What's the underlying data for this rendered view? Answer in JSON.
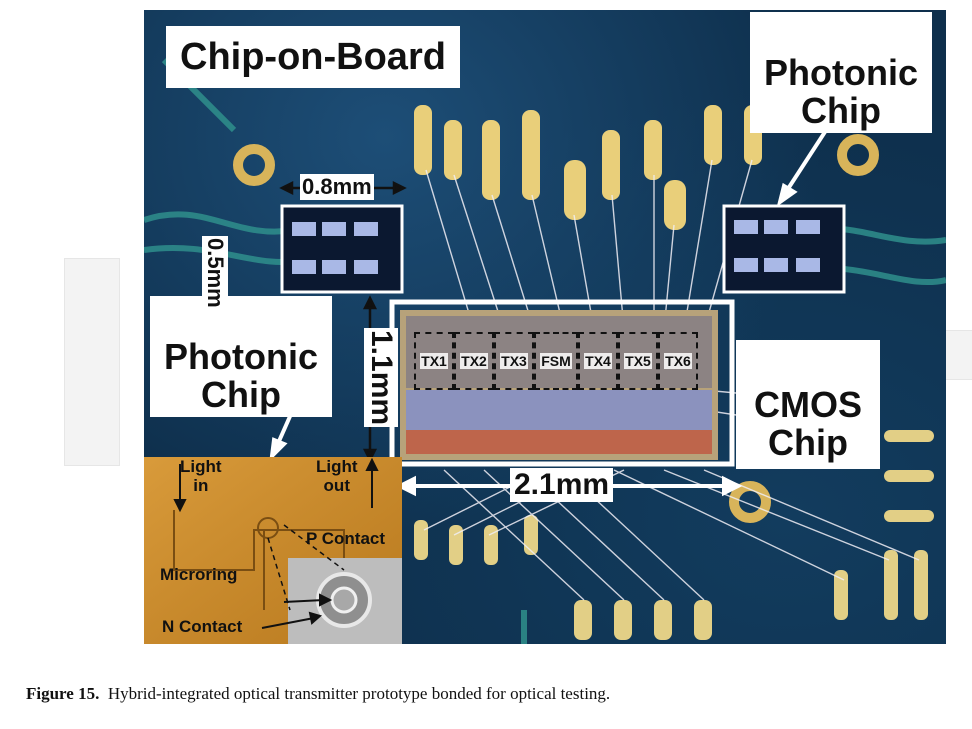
{
  "figure": {
    "labels": {
      "chip_on_board": "Chip-on-Board",
      "photonic_chip_top_right": "Photonic\nChip",
      "photonic_chip_left": "Photonic\nChip",
      "cmos_chip": "CMOS\nChip"
    },
    "dimensions": {
      "width_08": "0.8mm",
      "height_05": "0.5mm",
      "height_11": "1.1mm",
      "width_21": "2.1mm"
    },
    "tx_blocks": [
      "TX1",
      "TX2",
      "TX3",
      "FSM",
      "TX4",
      "TX5",
      "TX6"
    ],
    "inset": {
      "light_in": "Light\nin",
      "light_out": "Light\nout",
      "p_contact": "P Contact",
      "microring": "Microring",
      "n_contact": "N Contact"
    }
  },
  "caption": {
    "label": "Figure 15.",
    "text": "Hybrid-integrated optical transmitter prototype bonded for optical testing."
  }
}
